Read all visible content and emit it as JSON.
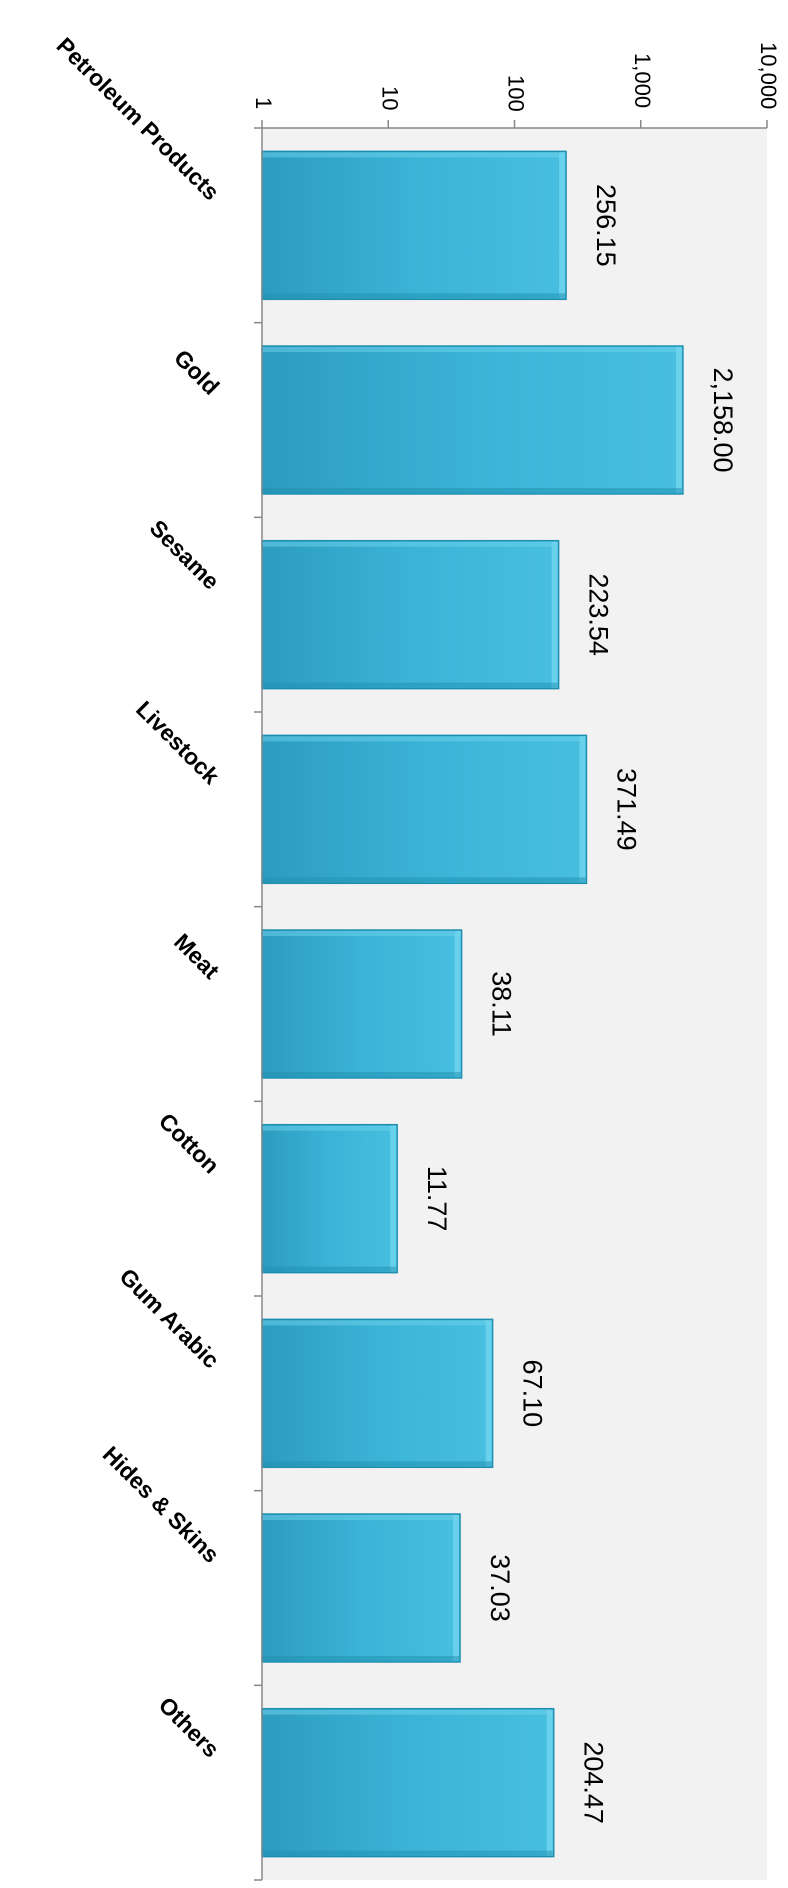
{
  "chart_data": {
    "type": "bar",
    "orientation": "horizontal",
    "title": "",
    "xlabel": "",
    "ylabel": "",
    "scale": "log",
    "xlim": [
      1,
      10000
    ],
    "grid": false,
    "legend": "none",
    "ticks": [
      "1",
      "10",
      "100",
      "1,000",
      "10,000"
    ],
    "tick_values": [
      1,
      10,
      100,
      1000,
      10000
    ],
    "categories": [
      "Petroleum Products",
      "Gold",
      "Sesame",
      "Livestock",
      "Meat",
      "Cotton",
      "Gum Arabic",
      "Hides & Skins",
      "Others"
    ],
    "values": [
      256.15,
      2158.0,
      223.54,
      371.49,
      38.11,
      11.77,
      67.1,
      37.03,
      204.47
    ],
    "value_labels": [
      "256.15",
      "2,158.00",
      "223.54",
      "371.49",
      "38.11",
      "11.77",
      "67.10",
      "37.03",
      "204.47"
    ],
    "colors": {
      "bar": "#3bb3d6",
      "bar_dark": "#1f8fb0",
      "bar_light": "#6fd3ec",
      "plot_bg": "#f2f2f2",
      "axis": "#888888"
    }
  }
}
